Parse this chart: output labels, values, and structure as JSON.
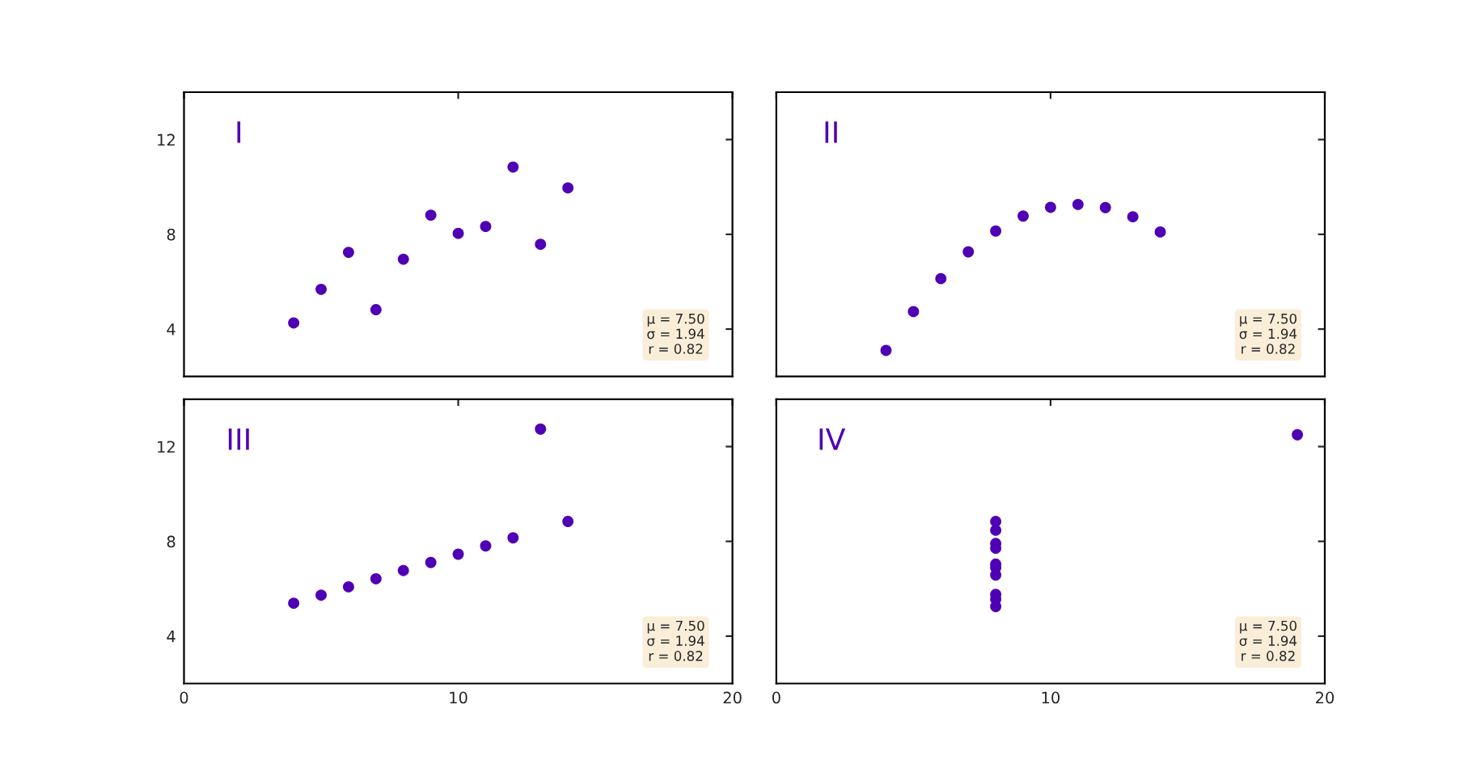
{
  "chart_data": [
    {
      "type": "scatter",
      "title": "I",
      "x": [
        10,
        8,
        13,
        9,
        11,
        14,
        6,
        4,
        12,
        7,
        5
      ],
      "series": [
        {
          "color": "#5000b4",
          "values": [
            8.04,
            6.95,
            7.58,
            8.81,
            8.33,
            9.96,
            7.24,
            4.26,
            10.84,
            4.82,
            5.68
          ]
        }
      ],
      "xlim": [
        0,
        20
      ],
      "ylim": [
        2,
        14
      ],
      "xticks": [
        0,
        10,
        20
      ],
      "yticks": [
        4,
        8,
        12
      ],
      "tick_labels": "y",
      "marker": "circle",
      "grid": false,
      "annotations": [
        "μ = 7.50\nσ = 1.94\nr = 0.82"
      ]
    },
    {
      "type": "scatter",
      "title": "II",
      "x": [
        10,
        8,
        13,
        9,
        11,
        14,
        6,
        4,
        12,
        7,
        5
      ],
      "series": [
        {
          "color": "#5000b4",
          "values": [
            9.14,
            8.14,
            8.74,
            8.77,
            9.26,
            8.1,
            6.13,
            3.1,
            9.13,
            7.26,
            4.74
          ]
        }
      ],
      "xlim": [
        0,
        20
      ],
      "ylim": [
        2,
        14
      ],
      "xticks": [
        0,
        10,
        20
      ],
      "yticks": [
        4,
        8,
        12
      ],
      "tick_labels": false,
      "marker": "circle",
      "grid": false,
      "annotations": [
        "μ = 7.50\nσ = 1.94\nr = 0.82"
      ]
    },
    {
      "type": "scatter",
      "title": "III",
      "x": [
        10,
        8,
        13,
        9,
        11,
        14,
        6,
        4,
        12,
        7,
        5
      ],
      "series": [
        {
          "color": "#5000b4",
          "values": [
            7.46,
            6.77,
            12.74,
            7.11,
            7.81,
            8.84,
            6.08,
            5.39,
            8.15,
            6.42,
            5.73
          ]
        }
      ],
      "xlim": [
        0,
        20
      ],
      "ylim": [
        2,
        14
      ],
      "xticks": [
        0,
        10,
        20
      ],
      "yticks": [
        4,
        8,
        12
      ],
      "marker": "circle",
      "grid": false,
      "annotations": [
        "μ = 7.50\nσ = 1.94\nr = 0.82"
      ]
    },
    {
      "type": "scatter",
      "title": "IV",
      "x": [
        8,
        8,
        8,
        8,
        8,
        8,
        8,
        19,
        8,
        8,
        8
      ],
      "series": [
        {
          "color": "#5000b4",
          "values": [
            6.58,
            5.76,
            7.71,
            8.84,
            8.47,
            7.04,
            5.25,
            12.5,
            5.56,
            7.91,
            6.89
          ]
        }
      ],
      "xlim": [
        0,
        20
      ],
      "ylim": [
        2,
        14
      ],
      "xticks": [
        0,
        10,
        20
      ],
      "yticks": [
        4,
        8,
        12
      ],
      "tick_labels": "x",
      "marker": "circle",
      "grid": false,
      "annotations": [
        "μ = 7.50\nσ = 1.94\nr = 0.82"
      ]
    }
  ]
}
